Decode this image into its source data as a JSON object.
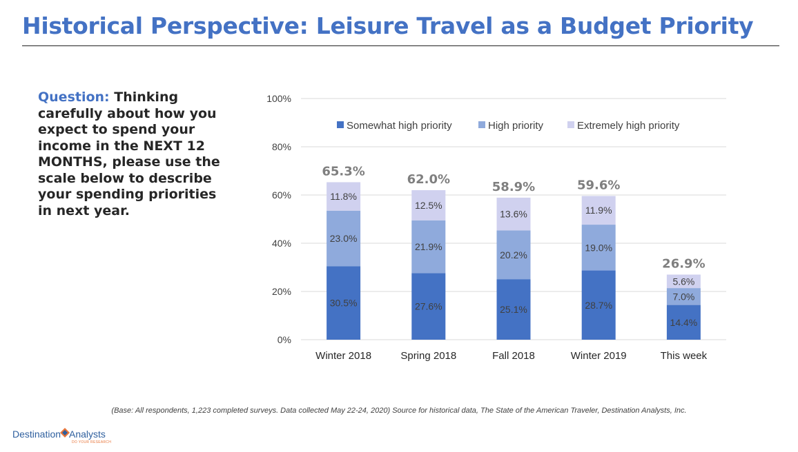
{
  "header": {
    "title": "Historical Perspective: Leisure Travel as a Budget Priority"
  },
  "question": {
    "label": "Question:",
    "text": " Thinking carefully about how you expect to spend your income in the NEXT 12 MONTHS, please use the scale below to describe your spending priorities in next year."
  },
  "chart_data": {
    "type": "bar",
    "stacked": true,
    "categories": [
      "Winter 2018",
      "Spring 2018",
      "Fall 2018",
      "Winter 2019",
      "This week"
    ],
    "series": [
      {
        "name": "Somewhat high priority",
        "color": "#4472c4",
        "values": [
          30.5,
          27.6,
          25.1,
          28.7,
          14.4
        ],
        "labels": [
          "30.5%",
          "27.6%",
          "25.1%",
          "28.7%",
          "14.4%"
        ]
      },
      {
        "name": "High priority",
        "color": "#8faadc",
        "values": [
          23.0,
          21.9,
          20.2,
          19.0,
          7.0
        ],
        "labels": [
          "23.0%",
          "21.9%",
          "20.2%",
          "19.0%",
          "7.0%"
        ]
      },
      {
        "name": "Extremely high priority",
        "color": "#d0d1ef",
        "values": [
          11.8,
          12.5,
          13.6,
          11.9,
          5.6
        ],
        "labels": [
          "11.8%",
          "12.5%",
          "13.6%",
          "11.9%",
          "5.6%"
        ]
      }
    ],
    "totals": [
      "65.3%",
      "62.0%",
      "58.9%",
      "59.6%",
      "26.9%"
    ],
    "ylim": [
      0,
      100
    ],
    "yticks": [
      "0%",
      "20%",
      "40%",
      "60%",
      "80%",
      "100%"
    ],
    "grid": true,
    "legend_position": "top"
  },
  "footnote": "(Base: All respondents, 1,223 completed surveys. Data collected May 22-24, 2020) Source for historical data, The State of the American Traveler, Destination Analysts, Inc.",
  "logo": {
    "text_left": "Destination",
    "text_right": "Analysts",
    "tagline": "DO YOUR RESEARCH"
  }
}
